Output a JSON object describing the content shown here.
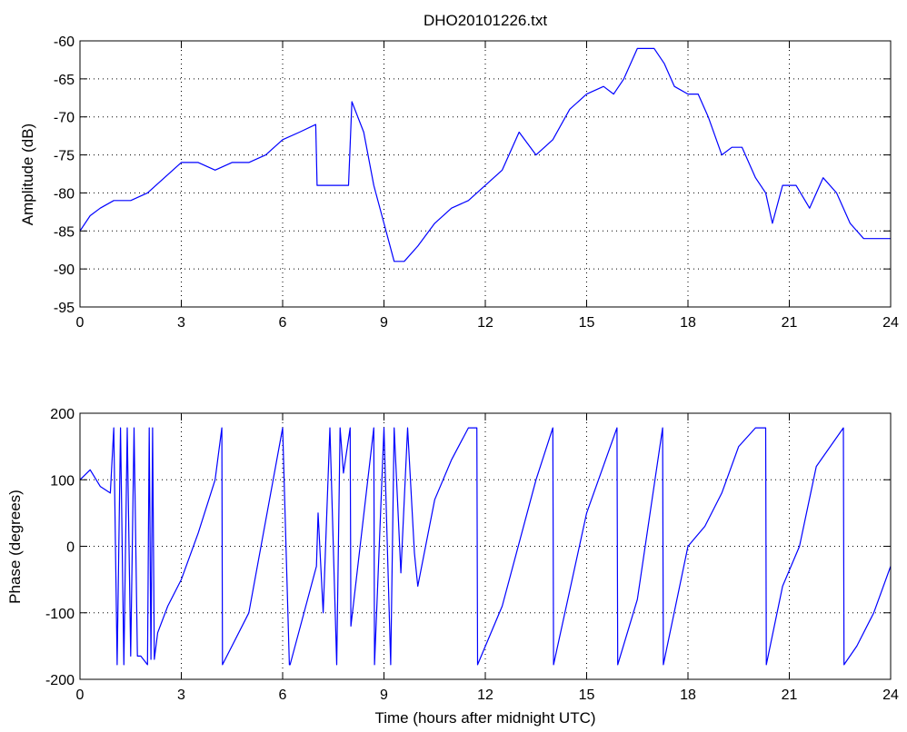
{
  "figure": {
    "title": "DHO20101226.txt"
  },
  "chart_data": [
    {
      "type": "line",
      "title": "DHO20101226.txt",
      "xlabel": "",
      "ylabel": "Amplitude (dB)",
      "xlim": [
        0,
        24
      ],
      "ylim": [
        -95,
        -60
      ],
      "xticks": [
        0,
        3,
        6,
        9,
        12,
        15,
        18,
        21,
        24
      ],
      "yticks": [
        -95,
        -90,
        -85,
        -80,
        -75,
        -70,
        -65,
        -60
      ],
      "grid": true,
      "line_color": "#0000ff",
      "series": [
        {
          "x": [
            0,
            0.3,
            0.6,
            1.0,
            1.5,
            2.0,
            2.5,
            3.0,
            3.5,
            4.0,
            4.5,
            5.0,
            5.5,
            6.0,
            6.5,
            6.98,
            7.02,
            7.5,
            7.95,
            8.05,
            8.4,
            8.7,
            9.0,
            9.3,
            9.6,
            10.0,
            10.5,
            11.0,
            11.5,
            12.0,
            12.5,
            13.0,
            13.5,
            14.0,
            14.5,
            15.0,
            15.5,
            15.8,
            16.1,
            16.5,
            17.0,
            17.3,
            17.6,
            18.0,
            18.3,
            18.6,
            19.0,
            19.3,
            19.6,
            20.0,
            20.3,
            20.5,
            20.8,
            21.2,
            21.6,
            22.0,
            22.4,
            22.8,
            23.2,
            23.6,
            24.0
          ],
          "y": [
            -85,
            -83,
            -82,
            -81,
            -81,
            -80,
            -78,
            -76,
            -76,
            -77,
            -76,
            -76,
            -75,
            -73,
            -72,
            -71,
            -79,
            -79,
            -79,
            -68,
            -72,
            -79,
            -84,
            -89,
            -89,
            -87,
            -84,
            -82,
            -81,
            -79,
            -77,
            -72,
            -75,
            -73,
            -69,
            -67,
            -66,
            -67,
            -65,
            -61,
            -61,
            -63,
            -66,
            -67,
            -67,
            -70,
            -75,
            -74,
            -74,
            -78,
            -80,
            -84,
            -79,
            -79,
            -82,
            -78,
            -80,
            -84,
            -86,
            -86,
            -86
          ]
        }
      ]
    },
    {
      "type": "line",
      "title": "",
      "xlabel": "Time (hours after midnight UTC)",
      "ylabel": "Phase (degrees)",
      "xlim": [
        0,
        24
      ],
      "ylim": [
        -200,
        200
      ],
      "xticks": [
        0,
        3,
        6,
        9,
        12,
        15,
        18,
        21,
        24
      ],
      "yticks": [
        -200,
        -100,
        0,
        100,
        200
      ],
      "grid": true,
      "line_color": "#0000ff",
      "series": [
        {
          "x": [
            0,
            0.3,
            0.6,
            0.9,
            1.0,
            1.1,
            1.2,
            1.3,
            1.4,
            1.5,
            1.6,
            1.7,
            1.8,
            2.0,
            2.05,
            2.1,
            2.15,
            2.2,
            2.3,
            2.6,
            3.0,
            3.5,
            4.0,
            4.2,
            4.22,
            5.0,
            6.0,
            6.2,
            6.22,
            7.0,
            7.05,
            7.2,
            7.4,
            7.6,
            7.7,
            7.8,
            8.0,
            8.02,
            8.7,
            8.72,
            9.0,
            9.2,
            9.3,
            9.5,
            9.7,
            9.9,
            10.0,
            10.5,
            11.0,
            11.5,
            11.75,
            11.77,
            12.5,
            13.5,
            14.0,
            14.02,
            15.0,
            15.9,
            15.92,
            16.5,
            17.25,
            17.27,
            18.0,
            18.5,
            19.0,
            19.5,
            20.0,
            20.3,
            20.32,
            20.8,
            21.3,
            21.8,
            22.6,
            22.62,
            23.0,
            23.5,
            24.0
          ],
          "y": [
            100,
            115,
            90,
            80,
            178,
            -178,
            178,
            -178,
            178,
            -165,
            178,
            -165,
            -165,
            -178,
            178,
            -170,
            178,
            -170,
            -130,
            -90,
            -50,
            20,
            100,
            178,
            -178,
            -100,
            178,
            -178,
            -178,
            -30,
            50,
            -100,
            178,
            -178,
            178,
            110,
            178,
            -120,
            178,
            -178,
            178,
            -178,
            178,
            -40,
            178,
            -10,
            -60,
            70,
            130,
            178,
            178,
            -178,
            -90,
            100,
            178,
            -178,
            50,
            178,
            -178,
            -80,
            178,
            -178,
            0,
            30,
            80,
            150,
            178,
            178,
            -178,
            -60,
            0,
            120,
            178,
            -178,
            -150,
            -100,
            -30
          ]
        }
      ]
    }
  ]
}
